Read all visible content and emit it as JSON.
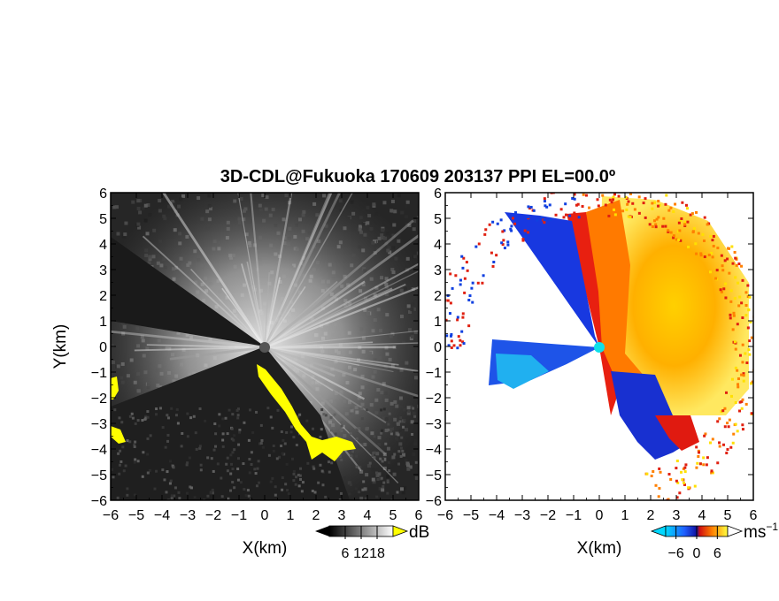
{
  "chart_data": [
    {
      "type": "heatmap",
      "variable": "reflectivity",
      "title": "3D-CDL@Fukuoka 170609 203137 PPI EL=00.0º",
      "xlabel": "X(km)",
      "ylabel": "Y(km)",
      "xlim": [
        -6,
        6
      ],
      "ylim": [
        -6,
        6
      ],
      "x_ticks": [
        "-6",
        "-5",
        "-4",
        "-3",
        "-2",
        "-1",
        "0",
        "1",
        "2",
        "3",
        "4",
        "5",
        "6"
      ],
      "y_ticks": [
        "6",
        "5",
        "4",
        "3",
        "2",
        "1",
        "0",
        "-1",
        "-2",
        "-3",
        "-4",
        "-5",
        "-6"
      ],
      "colormap": "grayscale",
      "colorbar": {
        "unit": "dB",
        "ticks": [
          "6",
          "12",
          "18"
        ],
        "range": [
          0,
          24
        ]
      },
      "highlight_color": "#ffff00"
    },
    {
      "type": "heatmap",
      "variable": "radial velocity",
      "xlabel": "X(km)",
      "xlim": [
        -6,
        6
      ],
      "ylim": [
        -6,
        6
      ],
      "x_ticks": [
        "-6",
        "-5",
        "-4",
        "-3",
        "-2",
        "-1",
        "0",
        "1",
        "2",
        "3",
        "4",
        "5",
        "6"
      ],
      "y_ticks": [
        "6",
        "5",
        "4",
        "3",
        "2",
        "1",
        "0",
        "-1",
        "-2",
        "-3",
        "-4",
        "-5",
        "-6"
      ],
      "colormap": "blue-red-yellow",
      "colorbar": {
        "unit": "ms",
        "unit_sup": "−1",
        "ticks": [
          "−6",
          "0",
          "6"
        ],
        "range": [
          -9,
          9
        ]
      },
      "colors": {
        "cyan": "#00d0e8",
        "blue": "#1040e0",
        "red": "#e02010",
        "orange": "#ff8000",
        "yellow": "#ffe000"
      }
    }
  ]
}
